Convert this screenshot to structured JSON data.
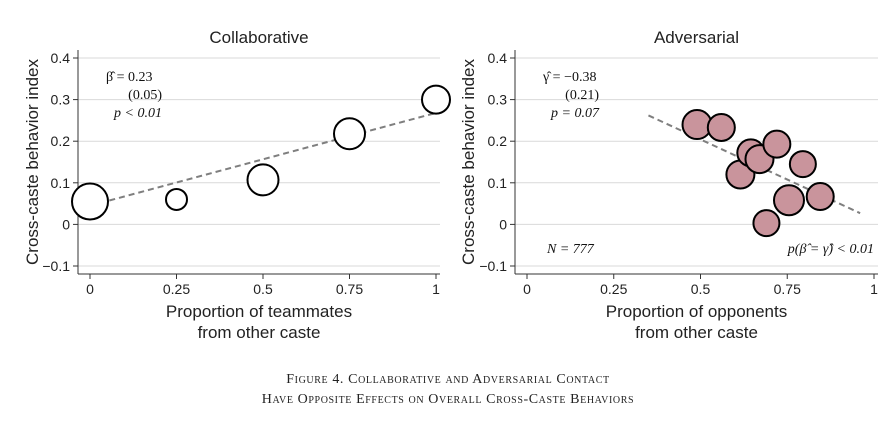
{
  "chart_data": [
    {
      "type": "scatter",
      "title": "Collaborative",
      "xlabel": "Proportion of teammates\nfrom other caste",
      "ylabel": "Cross-caste behavior index",
      "xlim": [
        0,
        1
      ],
      "ylim": [
        -0.1,
        0.4
      ],
      "xticks": [
        0,
        0.25,
        0.5,
        0.75,
        1
      ],
      "xtick_labels": [
        "0",
        "0.25",
        "0.5",
        "0.75",
        "1"
      ],
      "yticks": [
        -0.1,
        0,
        0.1,
        0.2,
        0.3,
        0.4
      ],
      "ytick_labels": [
        "−0.1",
        "0",
        "0.1",
        "0.2",
        "0.3",
        "0.4"
      ],
      "grid": "horizontal",
      "marker_fill": "#ffffff",
      "points": [
        {
          "x": 0.0,
          "y": 0.055,
          "size": 1.0
        },
        {
          "x": 0.25,
          "y": 0.06,
          "size": 0.25
        },
        {
          "x": 0.5,
          "y": 0.107,
          "size": 0.75
        },
        {
          "x": 0.75,
          "y": 0.218,
          "size": 0.75
        },
        {
          "x": 1.0,
          "y": 0.3,
          "size": 0.6
        }
      ],
      "fit": {
        "x": [
          0,
          1
        ],
        "y": [
          0.045,
          0.268
        ]
      },
      "annotation": [
        "β̂ = 0.23",
        "(0.05)",
        "p < 0.01"
      ]
    },
    {
      "type": "scatter",
      "title": "Adversarial",
      "xlabel": "Proportion of opponents\nfrom other caste",
      "ylabel": "Cross-caste behavior index",
      "xlim": [
        0,
        1
      ],
      "ylim": [
        -0.1,
        0.4
      ],
      "xticks": [
        0,
        0.25,
        0.5,
        0.75,
        1
      ],
      "xtick_labels": [
        "0",
        "0.25",
        "0.5",
        "0.75",
        "1"
      ],
      "yticks": [
        -0.1,
        0,
        0.1,
        0.2,
        0.3,
        0.4
      ],
      "ytick_labels": [
        "−0.1",
        "0",
        "0.1",
        "0.2",
        "0.3",
        "0.4"
      ],
      "grid": "horizontal",
      "marker_fill": "#c9949c",
      "points": [
        {
          "x": 0.49,
          "y": 0.24,
          "size": 0.65
        },
        {
          "x": 0.56,
          "y": 0.233,
          "size": 0.55
        },
        {
          "x": 0.615,
          "y": 0.12,
          "size": 0.6
        },
        {
          "x": 0.645,
          "y": 0.172,
          "size": 0.55
        },
        {
          "x": 0.67,
          "y": 0.157,
          "size": 0.6
        },
        {
          "x": 0.69,
          "y": 0.003,
          "size": 0.5
        },
        {
          "x": 0.72,
          "y": 0.193,
          "size": 0.55
        },
        {
          "x": 0.755,
          "y": 0.058,
          "size": 0.7
        },
        {
          "x": 0.795,
          "y": 0.145,
          "size": 0.5
        },
        {
          "x": 0.845,
          "y": 0.067,
          "size": 0.55
        }
      ],
      "fit": {
        "x": [
          0.35,
          0.96
        ],
        "y": [
          0.262,
          0.027
        ]
      },
      "annotation": [
        "γ̂ = −0.38",
        "(0.21)",
        "p = 0.07"
      ],
      "annotation_bottom_left": "N = 777",
      "annotation_bottom_right": "p(β̂ = γ̂) < 0.01"
    }
  ],
  "caption": {
    "line1": "Figure 4. Collaborative and Adversarial Contact",
    "line2": "Have Opposite Effects on Overall Cross-Caste Behaviors"
  }
}
